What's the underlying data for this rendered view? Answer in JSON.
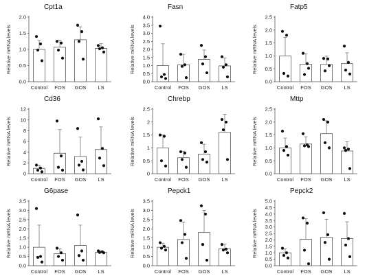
{
  "chart_data": [
    {
      "type": "bar",
      "title": "Cpt1a",
      "ylabel": "Relative mRNA levels",
      "categories": [
        "Control",
        "FOS",
        "GOS",
        "LS"
      ],
      "ylim": [
        0,
        2.0
      ],
      "yticks": [
        "0.0",
        "0.5",
        "1.0",
        "1.5",
        "2.0"
      ],
      "values": [
        1.0,
        1.07,
        1.3,
        1.03
      ],
      "errors": [
        0.28,
        0.22,
        0.4,
        0.15
      ],
      "points": [
        [
          1.4,
          1.17,
          0.98,
          0.65
        ],
        [
          1.25,
          1.2,
          0.98,
          0.73
        ],
        [
          1.75,
          1.55,
          1.25,
          0.7
        ],
        [
          1.12,
          1.05,
          1.02,
          0.92
        ]
      ]
    },
    {
      "type": "bar",
      "title": "Fasn",
      "ylabel": "Relative mRNA levels",
      "categories": [
        "Control",
        "FOS",
        "GOS",
        "LS"
      ],
      "ylim": [
        0,
        4.0
      ],
      "yticks": [
        "0.0",
        "0.5",
        "1.0",
        "1.5",
        "2.0",
        "2.5",
        "3.0",
        "3.5",
        "4.0"
      ],
      "values": [
        1.0,
        1.05,
        1.38,
        0.98
      ],
      "errors": [
        1.35,
        0.65,
        0.58,
        0.5
      ],
      "points": [
        [
          3.45,
          0.45,
          0.3,
          0.2
        ],
        [
          1.7,
          1.05,
          0.95,
          0.25
        ],
        [
          2.25,
          1.55,
          1.1,
          0.55
        ],
        [
          1.55,
          1.05,
          0.9,
          0.3
        ]
      ]
    },
    {
      "type": "bar",
      "title": "Fatp5",
      "ylabel": "Relative mRNA levels",
      "categories": [
        "Control",
        "FOS",
        "GOS",
        "LS"
      ],
      "ylim": [
        0,
        2.5
      ],
      "yticks": [
        "0.0",
        "0.5",
        "1.0",
        "1.5",
        "2.0",
        "2.5"
      ],
      "values": [
        1.0,
        0.68,
        0.67,
        0.7
      ],
      "errors": [
        0.72,
        0.4,
        0.32,
        0.42
      ],
      "points": [
        [
          1.95,
          1.8,
          0.32,
          0.22
        ],
        [
          1.1,
          0.7,
          0.28,
          0.52
        ],
        [
          0.9,
          0.88,
          0.42,
          0.62
        ],
        [
          1.38,
          0.75,
          0.45,
          0.3
        ]
      ]
    },
    {
      "type": "bar",
      "title": "Cd36",
      "ylabel": "Relative mRNA levels",
      "categories": [
        "Control",
        "FOS",
        "GOS",
        "LS"
      ],
      "ylim": [
        0,
        12
      ],
      "yticks": [
        "0",
        "2",
        "4",
        "6",
        "8",
        "10",
        "12"
      ],
      "values": [
        1.0,
        3.8,
        3.2,
        4.5
      ],
      "errors": [
        0.6,
        4.4,
        3.6,
        4.2
      ],
      "points": [
        [
          1.6,
          1.05,
          0.65,
          0.35
        ],
        [
          9.8,
          3.3,
          1.2,
          0.65
        ],
        [
          8.4,
          2.3,
          1.6,
          0.7
        ],
        [
          10.2,
          4.7,
          2.9,
          1.5
        ]
      ]
    },
    {
      "type": "bar",
      "title": "Chrebp",
      "ylabel": "Relative mRNA levels",
      "categories": [
        "Control",
        "FOS",
        "GOS",
        "LS"
      ],
      "ylim": [
        0,
        2.5
      ],
      "yticks": [
        "0",
        "0.5",
        "1",
        "1.5",
        "2",
        "2.5"
      ],
      "values": [
        1.0,
        0.62,
        0.76,
        1.6
      ],
      "errors": [
        0.5,
        0.25,
        0.38,
        0.7
      ],
      "points": [
        [
          1.5,
          1.45,
          0.5,
          0.3
        ],
        [
          0.85,
          0.8,
          0.55,
          0.25
        ],
        [
          1.2,
          0.85,
          0.55,
          0.45
        ],
        [
          2.1,
          2.0,
          1.7,
          0.55
        ]
      ]
    },
    {
      "type": "bar",
      "title": "Mttp",
      "ylabel": "Relative mRNA levels",
      "categories": [
        "Control",
        "FOS",
        "GOS",
        "LS"
      ],
      "ylim": [
        0,
        2.5
      ],
      "yticks": [
        "0.0",
        "0.5",
        "1.0",
        "1.5",
        "2.0",
        "2.5"
      ],
      "values": [
        1.0,
        1.15,
        1.55,
        0.88
      ],
      "errors": [
        0.38,
        0.28,
        0.5,
        0.36
      ],
      "points": [
        [
          1.65,
          1.05,
          0.9,
          0.72
        ],
        [
          1.55,
          1.12,
          1.08,
          1.05
        ],
        [
          2.1,
          2.0,
          1.2,
          1.0
        ],
        [
          1.0,
          0.95,
          0.9,
          0.2
        ]
      ]
    },
    {
      "type": "bar",
      "title": "G6pase",
      "ylabel": "Relative mRNA levels",
      "categories": [
        "Control",
        "FOS",
        "GOS",
        "LS"
      ],
      "ylim": [
        0,
        3.5
      ],
      "yticks": [
        "0.0",
        "0.5",
        "1.0",
        "1.5",
        "2.0",
        "2.5",
        "3.0",
        "3.5"
      ],
      "values": [
        1.0,
        0.65,
        1.1,
        0.72
      ],
      "errors": [
        1.2,
        0.28,
        1.1,
        0.1
      ],
      "points": [
        [
          3.1,
          0.5,
          0.45,
          0.2
        ],
        [
          0.95,
          0.7,
          0.5,
          0.3
        ],
        [
          2.75,
          0.8,
          0.55,
          0.3
        ],
        [
          0.8,
          0.75,
          0.72,
          0.7
        ]
      ]
    },
    {
      "type": "bar",
      "title": "Pepck1",
      "ylabel": "Relative mRNA levels",
      "categories": [
        "Control",
        "FOS",
        "GOS",
        "LS"
      ],
      "ylim": [
        0,
        3.5
      ],
      "yticks": [
        "0.0",
        "0.5",
        "1.0",
        "1.5",
        "2.0",
        "2.5",
        "3.0",
        "3.5"
      ],
      "values": [
        1.0,
        1.42,
        1.8,
        0.92
      ],
      "errors": [
        0.22,
        0.95,
        1.2,
        0.25
      ],
      "points": [
        [
          1.25,
          1.05,
          0.95,
          0.85
        ],
        [
          2.45,
          1.7,
          1.25,
          0.4
        ],
        [
          3.25,
          2.8,
          1.15,
          0.3
        ],
        [
          1.15,
          0.9,
          0.85,
          0.7
        ]
      ]
    },
    {
      "type": "bar",
      "title": "Pepck2",
      "ylabel": "Relative mRNA levels",
      "categories": [
        "Control",
        "FOS",
        "GOS",
        "LS"
      ],
      "ylim": [
        0,
        5.0
      ],
      "yticks": [
        "0.0",
        "0.5",
        "1.0",
        "1.5",
        "2.0",
        "2.5",
        "3.0",
        "3.5",
        "4.0",
        "4.5",
        "5.0"
      ],
      "values": [
        1.0,
        2.05,
        2.2,
        2.1
      ],
      "errors": [
        0.32,
        1.6,
        1.4,
        1.3
      ],
      "points": [
        [
          1.35,
          1.0,
          0.8,
          0.6
        ],
        [
          3.7,
          3.3,
          1.2,
          0.15
        ],
        [
          4.1,
          2.4,
          1.8,
          0.5
        ],
        [
          4.05,
          2.1,
          1.6,
          0.7
        ]
      ]
    }
  ]
}
